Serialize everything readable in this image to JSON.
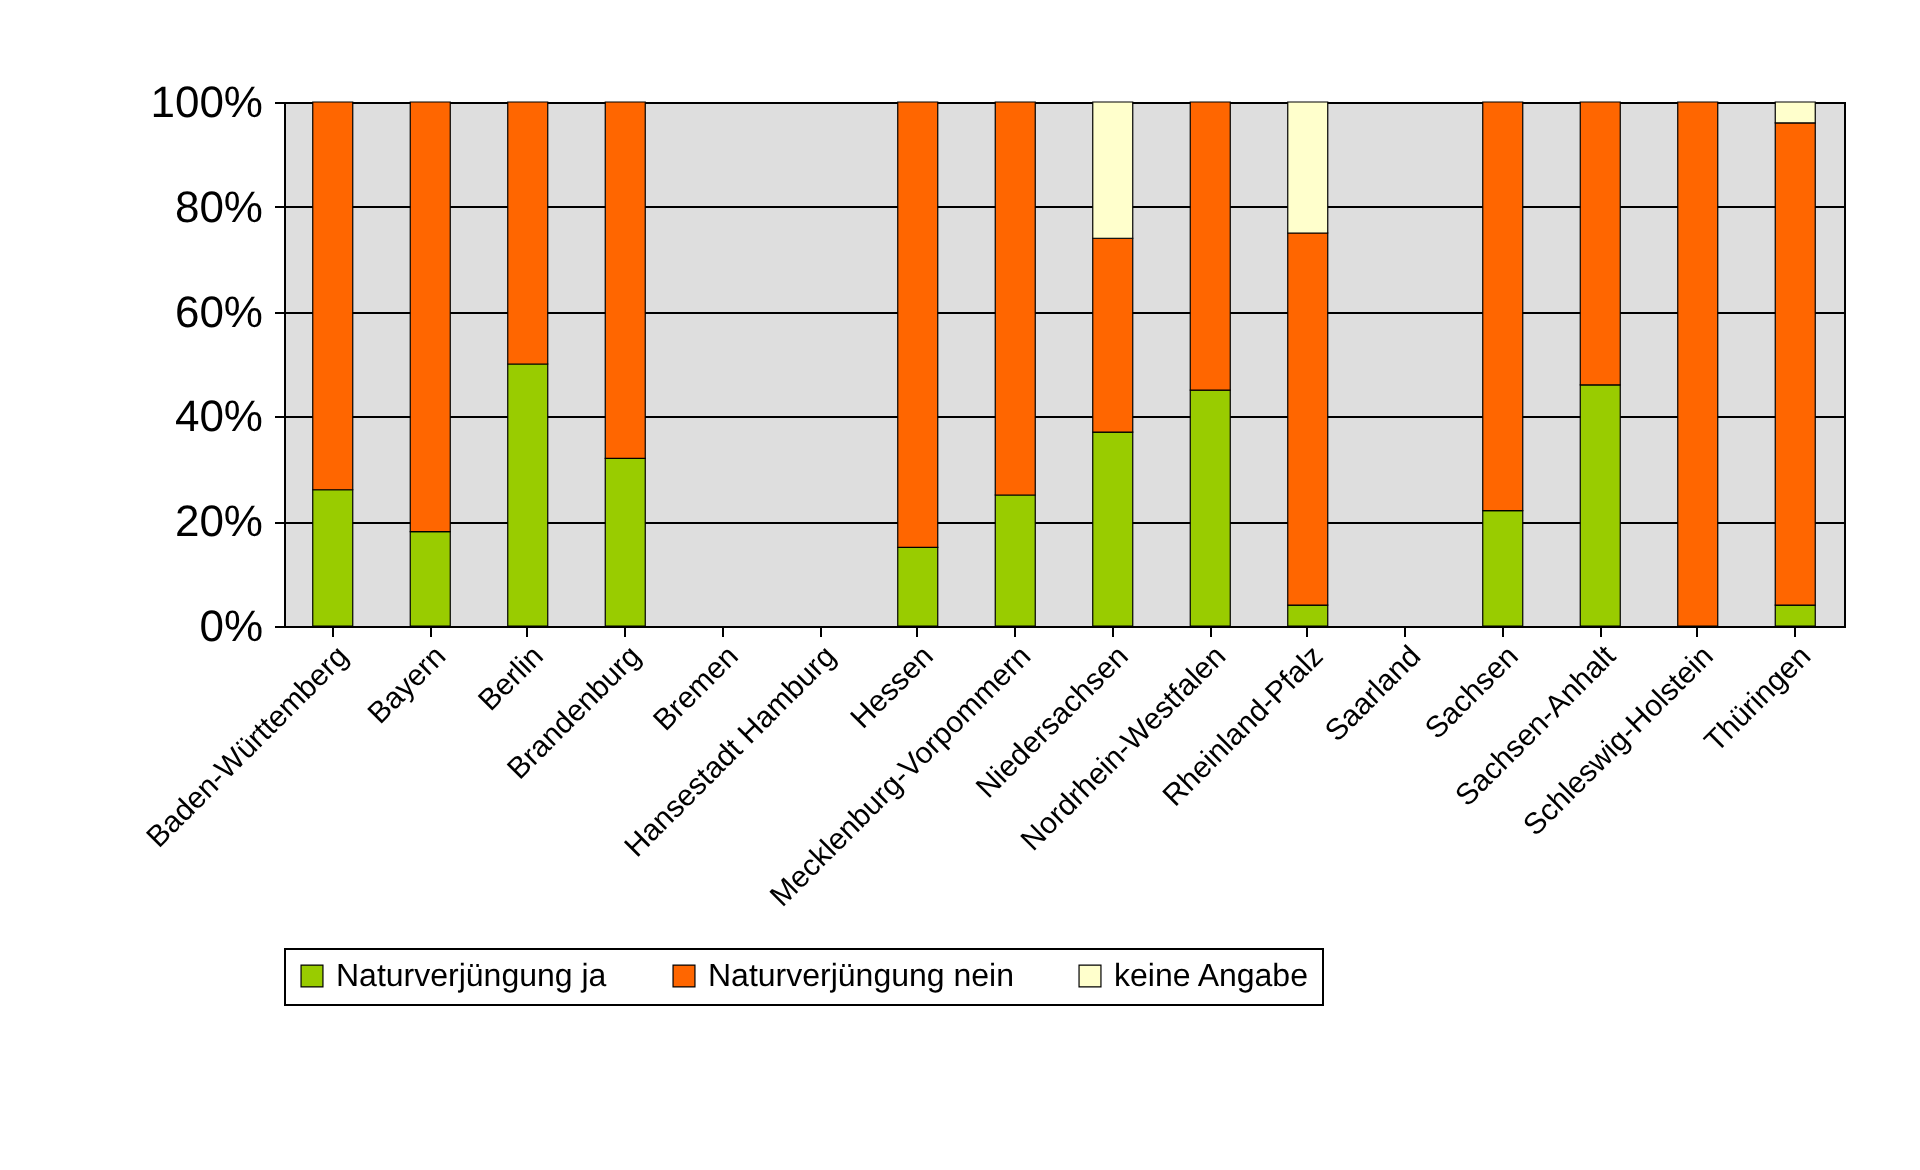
{
  "chart_data": {
    "type": "bar",
    "stacked": true,
    "categories": [
      "Baden-Württemberg",
      "Bayern",
      "Berlin",
      "Brandenburg",
      "Bremen",
      "Hansestadt Hamburg",
      "Hessen",
      "Mecklenburg-Vorpommern",
      "Niedersachsen",
      "Nordrhein-Westfalen",
      "Rheinland-Pfalz",
      "Saarland",
      "Sachsen",
      "Sachsen-Anhalt",
      "Schleswig-Holstein",
      "Thüringen"
    ],
    "series": [
      {
        "name": "Naturverjüngung ja",
        "color": "#99cc00",
        "values": [
          26,
          18,
          50,
          32,
          null,
          null,
          15,
          25,
          37,
          45,
          4,
          null,
          22,
          46,
          0,
          4
        ]
      },
      {
        "name": "Naturverjüngung nein",
        "color": "#ff6600",
        "values": [
          74,
          82,
          50,
          68,
          null,
          null,
          85,
          75,
          37,
          55,
          71,
          null,
          78,
          54,
          100,
          92
        ]
      },
      {
        "name": "keine Angabe",
        "color": "#ffffcc",
        "values": [
          0,
          0,
          0,
          0,
          null,
          null,
          0,
          0,
          26,
          0,
          25,
          null,
          0,
          0,
          0,
          4
        ]
      }
    ],
    "ylim": [
      0,
      100
    ],
    "yticks": [
      {
        "value": 0,
        "label": "0%"
      },
      {
        "value": 20,
        "label": "20%"
      },
      {
        "value": 40,
        "label": "40%"
      },
      {
        "value": 60,
        "label": "60%"
      },
      {
        "value": 80,
        "label": "80%"
      },
      {
        "value": 100,
        "label": "100%"
      }
    ],
    "grid": "y",
    "legend": "bottom"
  }
}
